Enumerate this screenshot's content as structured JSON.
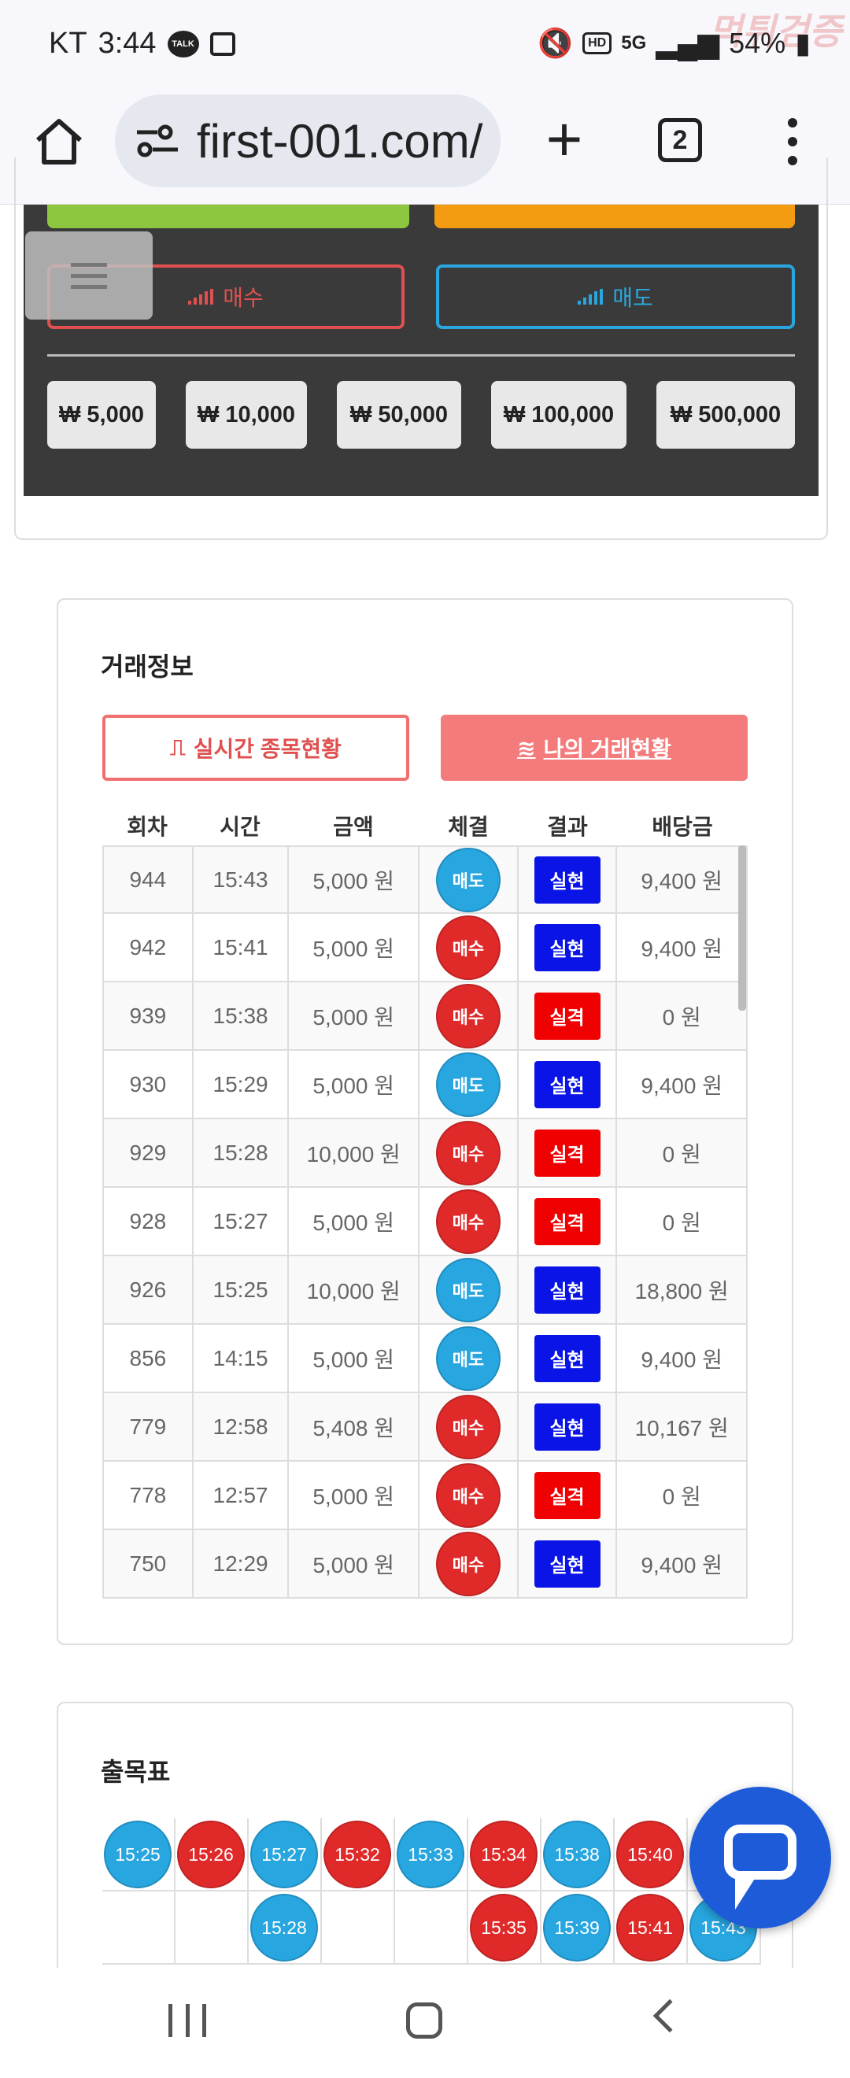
{
  "status_bar": {
    "carrier": "KT",
    "time": "3:44",
    "talk_badge": "TALK",
    "hd": "HD",
    "network": "5G",
    "battery": "54%",
    "watermark": "먹튀검증"
  },
  "browser": {
    "url": "first-001.com/",
    "tab_count": "2"
  },
  "trade_panel": {
    "buy_label": "매수",
    "sell_label": "매도",
    "amounts": [
      "₩ 5,000",
      "₩ 10,000",
      "₩ 50,000",
      "₩ 100,000",
      "₩ 500,000"
    ]
  },
  "trade_info": {
    "title": "거래정보",
    "tab_realtime": "실시간 종목현황",
    "tab_mine": "나의 거래현황",
    "columns": [
      "회차",
      "시간",
      "금액",
      "체결",
      "결과",
      "배당금"
    ],
    "rows": [
      {
        "round": "944",
        "time": "15:43",
        "amount": "5,000 원",
        "side": "매도",
        "result": "실현",
        "payout": "9,400 원"
      },
      {
        "round": "942",
        "time": "15:41",
        "amount": "5,000 원",
        "side": "매수",
        "result": "실현",
        "payout": "9,400 원"
      },
      {
        "round": "939",
        "time": "15:38",
        "amount": "5,000 원",
        "side": "매수",
        "result": "실격",
        "payout": "0 원"
      },
      {
        "round": "930",
        "time": "15:29",
        "amount": "5,000 원",
        "side": "매도",
        "result": "실현",
        "payout": "9,400 원"
      },
      {
        "round": "929",
        "time": "15:28",
        "amount": "10,000 원",
        "side": "매수",
        "result": "실격",
        "payout": "0 원"
      },
      {
        "round": "928",
        "time": "15:27",
        "amount": "5,000 원",
        "side": "매수",
        "result": "실격",
        "payout": "0 원"
      },
      {
        "round": "926",
        "time": "15:25",
        "amount": "10,000 원",
        "side": "매도",
        "result": "실현",
        "payout": "18,800 원"
      },
      {
        "round": "856",
        "time": "14:15",
        "amount": "5,000 원",
        "side": "매도",
        "result": "실현",
        "payout": "9,400 원"
      },
      {
        "round": "779",
        "time": "12:58",
        "amount": "5,408 원",
        "side": "매수",
        "result": "실현",
        "payout": "10,167 원"
      },
      {
        "round": "778",
        "time": "12:57",
        "amount": "5,000 원",
        "side": "매수",
        "result": "실격",
        "payout": "0 원"
      },
      {
        "round": "750",
        "time": "12:29",
        "amount": "5,000 원",
        "side": "매수",
        "result": "실현",
        "payout": "9,400 원"
      }
    ]
  },
  "chart_table": {
    "title": "출목표",
    "row1": [
      {
        "time": "15:25",
        "side": "sell"
      },
      {
        "time": "15:26",
        "side": "buy"
      },
      {
        "time": "15:27",
        "side": "sell"
      },
      {
        "time": "15:32",
        "side": "buy"
      },
      {
        "time": "15:33",
        "side": "sell"
      },
      {
        "time": "15:34",
        "side": "buy"
      },
      {
        "time": "15:38",
        "side": "sell"
      },
      {
        "time": "15:40",
        "side": "buy"
      },
      {
        "time": "",
        "side": "sell"
      }
    ],
    "row2": [
      {
        "time": "",
        "side": ""
      },
      {
        "time": "",
        "side": ""
      },
      {
        "time": "15:28",
        "side": "sell"
      },
      {
        "time": "",
        "side": ""
      },
      {
        "time": "",
        "side": ""
      },
      {
        "time": "15:35",
        "side": "buy"
      },
      {
        "time": "15:39",
        "side": "sell"
      },
      {
        "time": "15:41",
        "side": "buy"
      },
      {
        "time": "15:43",
        "side": "sell"
      }
    ]
  },
  "colors": {
    "buy": "#e02a2a",
    "sell": "#27a6e0",
    "win": "#0a14e6",
    "lose": "#f00000"
  }
}
